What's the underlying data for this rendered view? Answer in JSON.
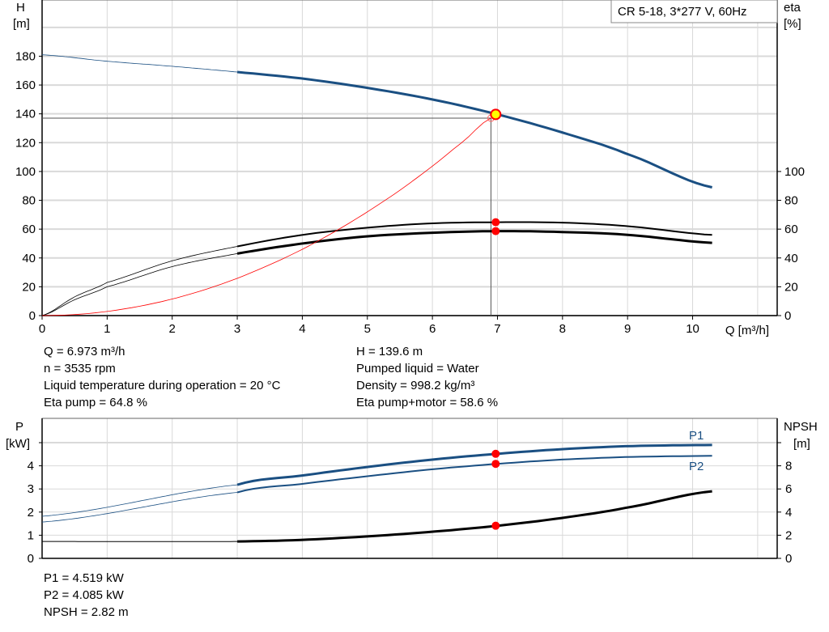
{
  "chart_data": [
    {
      "type": "line",
      "title_box": "CR 5-18, 3*277 V, 60Hz",
      "xlabel": "Q [m³/h]",
      "ylabel_left": [
        "H",
        "[m]"
      ],
      "ylabel_right": [
        "eta",
        "[%]"
      ],
      "xlim": [
        0,
        11.3
      ],
      "ylim_left": [
        0,
        219
      ],
      "x_ticks": [
        0,
        1,
        2,
        3,
        4,
        5,
        6,
        7,
        8,
        9,
        10
      ],
      "y_ticks_left": [
        0,
        20,
        40,
        60,
        80,
        100,
        120,
        140,
        160,
        180
      ],
      "y_ticks_right": [
        0,
        20,
        40,
        60,
        80,
        100
      ],
      "grid": true,
      "series": [
        {
          "key": "H",
          "color": "#1a4f82",
          "x": [
            0,
            1,
            2,
            3,
            4,
            5,
            6,
            7,
            8,
            9,
            10.3
          ],
          "y": [
            181,
            176.5,
            173,
            169,
            164.5,
            158,
            150,
            139.6,
            127,
            112,
            89
          ]
        },
        {
          "key": "eta_pump",
          "color": "#000000",
          "x": [
            0,
            0.5,
            1,
            2,
            3,
            4,
            5,
            6,
            7,
            8,
            9,
            10.3
          ],
          "y": [
            0,
            13,
            23,
            38,
            48,
            56,
            61,
            64,
            64.8,
            64.5,
            62,
            56
          ]
        },
        {
          "key": "eta_pump_motor",
          "color": "#000000",
          "x": [
            0,
            0.5,
            1,
            2,
            3,
            4,
            5,
            6,
            7,
            8,
            9,
            10.3
          ],
          "y": [
            0,
            11,
            20,
            34,
            43,
            50,
            55,
            57.5,
            58.6,
            58,
            56,
            50.5
          ]
        },
        {
          "key": "system",
          "color": "#ff0000",
          "x": [
            0,
            0.5,
            1,
            1.5,
            2,
            2.5,
            3,
            3.5,
            4,
            4.5,
            5,
            5.5,
            6,
            6.5,
            6.9
          ],
          "y": [
            0,
            0.7,
            2.9,
            6.5,
            11.5,
            18,
            25.9,
            35.3,
            46,
            58.3,
            72,
            87,
            103.7,
            121.7,
            137
          ]
        }
      ],
      "duty_point": {
        "Q": 6.973,
        "H": 139.6,
        "eta_pump": 64.8,
        "eta_pump_motor": 58.6,
        "crosshair": {
          "Q": 6.9,
          "H": 137
        }
      },
      "readouts_left": [
        "Q = 6.973 m³/h",
        "n = 3535 rpm",
        "Liquid temperature during operation = 20 °C",
        "Eta pump = 64.8 %"
      ],
      "readouts_right": [
        "H = 139.6 m",
        "Pumped liquid = Water",
        "Density = 998.2 kg/m³",
        "Eta pump+motor = 58.6 %"
      ]
    },
    {
      "type": "line",
      "ylabel_left": [
        "P",
        "[kW]"
      ],
      "ylabel_right": [
        "NPSH",
        "[m]"
      ],
      "xlim": [
        0,
        11.3
      ],
      "ylim_left": [
        0,
        6.05
      ],
      "y_ticks_left": [
        0,
        1,
        2,
        3,
        4
      ],
      "y_ticks_right": [
        0,
        2,
        4,
        6,
        8
      ],
      "grid": true,
      "series": [
        {
          "name": "P1",
          "color": "#1a4f82",
          "x": [
            0,
            3,
            4,
            5,
            6,
            7,
            8,
            9,
            10.3
          ],
          "y": [
            1.82,
            3.18,
            3.58,
            3.95,
            4.27,
            4.519,
            4.72,
            4.85,
            4.9
          ]
        },
        {
          "name": "P2",
          "color": "#1a4f82",
          "x": [
            0,
            3,
            4,
            5,
            6,
            7,
            8,
            9,
            10.3
          ],
          "y": [
            1.57,
            2.85,
            3.22,
            3.55,
            3.85,
            4.085,
            4.27,
            4.38,
            4.43
          ]
        },
        {
          "key": "NPSH",
          "color": "#000000",
          "x": [
            0,
            3,
            4,
            5,
            6,
            7,
            8,
            9,
            10.3
          ],
          "y_npsh": [
            1.46,
            1.46,
            1.6,
            1.9,
            2.3,
            2.82,
            3.5,
            4.4,
            5.8
          ]
        }
      ],
      "duty_point": {
        "P1": 4.519,
        "P2": 4.085,
        "NPSH": 2.82
      },
      "readouts": [
        "P1 = 4.519 kW",
        "P2 = 4.085 kW",
        "NPSH = 2.82 m"
      ]
    }
  ],
  "colors": {
    "curve_blue": "#1a4f82",
    "duty_marker": "#ff0000",
    "duty_fill": "#ffff00",
    "grid": "#d9d9d9"
  }
}
